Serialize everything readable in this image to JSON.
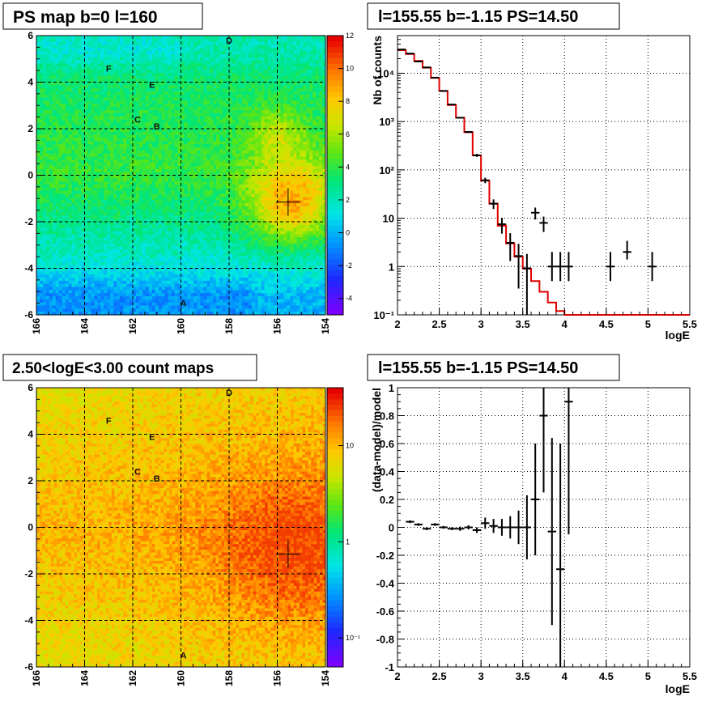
{
  "panels": {
    "ps_map": {
      "title": "PS map b=0 l=160",
      "xticks": [
        "166",
        "164",
        "162",
        "160",
        "158",
        "156",
        "154"
      ],
      "yticks": [
        "6",
        "4",
        "2",
        "0",
        "-2",
        "-4",
        "-6"
      ],
      "colorbar_ticks": [
        "12",
        "10",
        "8",
        "6",
        "4",
        "2",
        "0",
        "-2",
        "-4"
      ],
      "colorbar_range": [
        -5,
        12
      ],
      "source_labels": [
        "A",
        "B",
        "C",
        "D",
        "E",
        "F"
      ],
      "colors": {
        "low": "#3c00ff",
        "mid": "#00e8e8",
        "high": "#e80000"
      }
    },
    "spectrum": {
      "title": "l=155.55 b=-1.15 PS=14.50",
      "xlabel": "logE",
      "ylabel": "Nb of counts",
      "xticks": [
        "2",
        "2.5",
        "3",
        "3.5",
        "4",
        "4.5",
        "5",
        "5.5"
      ],
      "yticks": [
        "10⁴",
        "10³",
        "10²",
        "10",
        "1",
        "10⁻¹"
      ]
    },
    "count_map": {
      "title": "2.50<logE<3.00 count maps",
      "xticks": [
        "166",
        "164",
        "162",
        "160",
        "158",
        "156",
        "154"
      ],
      "yticks": [
        "6",
        "4",
        "2",
        "0",
        "-2",
        "-4",
        "-6"
      ],
      "colorbar_ticks": [
        "10",
        "1",
        "10⁻¹"
      ],
      "source_labels": [
        "A",
        "B",
        "C",
        "D",
        "E",
        "F"
      ]
    },
    "residual": {
      "title": "l=155.55 b=-1.15 PS=14.50",
      "xlabel": "logE",
      "ylabel": "(data-model)/model",
      "xticks": [
        "2",
        "2.5",
        "3",
        "3.5",
        "4",
        "4.5",
        "5",
        "5.5"
      ],
      "yticks": [
        "1",
        "0.8",
        "0.6",
        "0.4",
        "0.2",
        "0",
        "-0.2",
        "-0.4",
        "-0.6",
        "-0.8",
        "-1"
      ]
    }
  },
  "chart_data": [
    {
      "type": "heatmap",
      "title": "PS map b=0 l=160",
      "xlim": [
        166,
        154
      ],
      "ylim": [
        -6,
        6
      ],
      "zlim": [
        -5,
        12
      ],
      "sources": [
        {
          "label": "A",
          "l": 159.9,
          "b": -5.5
        },
        {
          "label": "B",
          "l": 161.0,
          "b": 2.1
        },
        {
          "label": "C",
          "l": 161.8,
          "b": 2.4
        },
        {
          "label": "D",
          "l": 158.0,
          "b": 5.8
        },
        {
          "label": "E",
          "l": 161.2,
          "b": 3.9
        },
        {
          "label": "F",
          "l": 163.0,
          "b": 4.6
        }
      ],
      "marker": {
        "l": 155.55,
        "b": -1.15
      },
      "grid": true
    },
    {
      "type": "line",
      "title": "l=155.55 b=-1.15 PS=14.50",
      "xlabel": "logE",
      "ylabel": "Nb of counts",
      "xlim": [
        2,
        5.5
      ],
      "ylim": [
        0.1,
        60000
      ],
      "yscale": "log",
      "grid": true,
      "series": [
        {
          "type": "step",
          "color": "#e00000",
          "x": [
            2.0,
            2.1,
            2.2,
            2.3,
            2.4,
            2.5,
            2.6,
            2.7,
            2.8,
            2.9,
            3.0,
            3.1,
            3.2,
            3.3,
            3.4,
            3.5,
            3.6,
            3.7,
            3.8,
            3.9,
            4.0,
            4.1,
            4.2,
            4.3,
            4.4,
            4.5,
            4.6,
            4.7,
            4.8,
            4.9,
            5.0,
            5.1,
            5.2,
            5.3,
            5.4
          ],
          "values": [
            30000,
            25000,
            18000,
            13000,
            8000,
            4300,
            2200,
            1200,
            600,
            200,
            60,
            20,
            7,
            3,
            1.6,
            0.9,
            0.5,
            0.3,
            0.18,
            0.12,
            0.1,
            0.1,
            0.1,
            0.1,
            0.1,
            0.1,
            0.1,
            0.1,
            0.1,
            0.1,
            0.1,
            0.1,
            0.1,
            0.1,
            0.1
          ]
        },
        {
          "type": "errorbar",
          "color": "#000000",
          "x": [
            2.05,
            2.15,
            2.25,
            2.35,
            2.45,
            2.55,
            2.65,
            2.75,
            2.85,
            2.95,
            3.05,
            3.15,
            3.25,
            3.35,
            3.45,
            3.55,
            3.65,
            3.75,
            3.85,
            3.95,
            4.05,
            4.55,
            4.75,
            5.05
          ],
          "values": [
            31000,
            25500,
            17500,
            13200,
            8100,
            4300,
            2250,
            1200,
            610,
            200,
            61,
            20,
            7.5,
            3.1,
            1.65,
            0.92,
            13,
            8,
            1,
            1,
            1,
            1,
            2,
            1
          ],
          "yerr_low": [
            180,
            160,
            130,
            110,
            90,
            65,
            47,
            35,
            25,
            14,
            7.8,
            4.5,
            2.7,
            1.8,
            1.3,
            0.9,
            3.6,
            2.8,
            0.5,
            0.5,
            0.5,
            0.5,
            0.6,
            0.5
          ],
          "yerr_high": [
            180,
            160,
            130,
            110,
            90,
            65,
            47,
            35,
            25,
            14,
            7.8,
            4.5,
            2.7,
            1.8,
            1.3,
            0.9,
            3.6,
            2.8,
            1.0,
            1.0,
            1.0,
            1.0,
            1.4,
            1.0
          ]
        }
      ]
    },
    {
      "type": "heatmap",
      "title": "2.50<logE<3.00 count maps",
      "xlim": [
        166,
        154
      ],
      "ylim": [
        -6,
        6
      ],
      "zscale": "log",
      "zlim": [
        0.05,
        40
      ],
      "sources": [
        {
          "label": "A",
          "l": 159.9,
          "b": -5.5
        },
        {
          "label": "B",
          "l": 161.0,
          "b": 2.1
        },
        {
          "label": "C",
          "l": 161.8,
          "b": 2.4
        },
        {
          "label": "D",
          "l": 158.0,
          "b": 5.8
        },
        {
          "label": "E",
          "l": 161.2,
          "b": 3.9
        },
        {
          "label": "F",
          "l": 163.0,
          "b": 4.6
        }
      ],
      "marker": {
        "l": 155.55,
        "b": -1.15
      },
      "grid": true
    },
    {
      "type": "scatter",
      "title": "l=155.55 b=-1.15 PS=14.50",
      "xlabel": "logE",
      "ylabel": "(data-model)/model",
      "xlim": [
        2,
        5.5
      ],
      "ylim": [
        -1,
        1
      ],
      "grid": true,
      "series": [
        {
          "type": "errorbar",
          "color": "#000000",
          "x": [
            2.15,
            2.25,
            2.35,
            2.45,
            2.55,
            2.65,
            2.75,
            2.85,
            2.95,
            3.05,
            3.15,
            3.25,
            3.35,
            3.45,
            3.55,
            3.65,
            3.75,
            3.85,
            3.95,
            4.05
          ],
          "values": [
            0.04,
            0.02,
            -0.01,
            0.02,
            0.0,
            -0.01,
            -0.01,
            0.0,
            -0.02,
            0.03,
            0.01,
            0.0,
            0.0,
            0.0,
            0.0,
            0.2,
            0.8,
            -0.03,
            -0.3,
            0.9
          ],
          "yerr": [
            0.01,
            0.01,
            0.01,
            0.01,
            0.01,
            0.01,
            0.015,
            0.015,
            0.02,
            0.04,
            0.05,
            0.06,
            0.08,
            0.12,
            0.23,
            0.4,
            0.55,
            0.67,
            0.9,
            0.95
          ]
        }
      ]
    }
  ]
}
